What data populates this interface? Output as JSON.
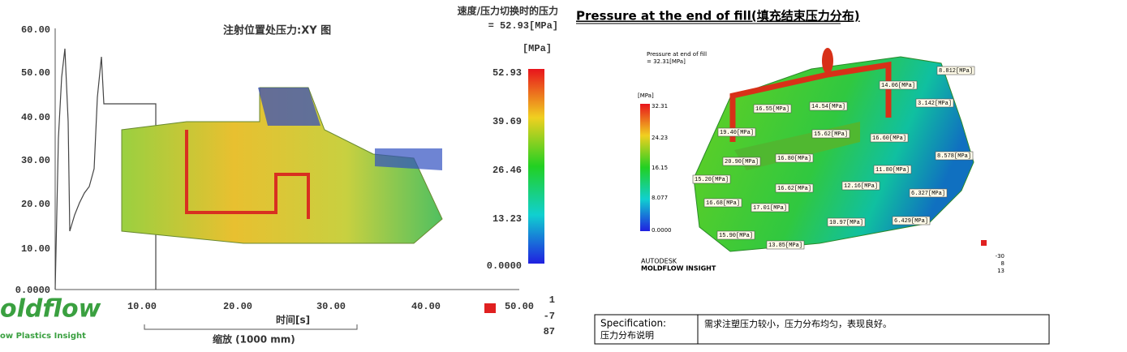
{
  "left": {
    "title": "注射位置处压力:XY 图",
    "switch_label": "速度/压力切换时的压力",
    "switch_value": "= 52.93[MPa]",
    "unit": "[MPa]",
    "legend_ticks": [
      "52.93",
      "39.69",
      "26.46",
      "13.23",
      "0.0000"
    ],
    "yticks": [
      "60.00",
      "50.00",
      "40.00",
      "30.00",
      "20.00",
      "10.00",
      "0.0000"
    ],
    "xticks": [
      "10.00",
      "20.00",
      "30.00",
      "40.00",
      "50.00"
    ],
    "x_label": "时间[s]",
    "scale_label": "缩放 (1000 mm)",
    "brand": "oldflow",
    "brand_sub": "ow Plastics Insight",
    "triad": [
      "1",
      "-7",
      "87"
    ]
  },
  "right": {
    "title": "Pressure at the end of fill(填充结束压力分布)",
    "result_name": "Pressure at end of fill",
    "result_value": "= 32.31[MPa]",
    "unit": "[MPa]",
    "legend_ticks": [
      "32.31",
      "24.23",
      "16.15",
      "8.077",
      "0.0000"
    ],
    "labels": [
      "8.812[MPa]",
      "14.06[MPa]",
      "3.142[MPa]",
      "16.55[MPa]",
      "14.54[MPa]",
      "19.40[MPa]",
      "15.62[MPa]",
      "16.60[MPa]",
      "8.578[MPa]",
      "16.80[MPa]",
      "20.90[MPa]",
      "11.80[MPa]",
      "15.20[MPa]",
      "16.62[MPa]",
      "12.16[MPa]",
      "6.327[MPa]",
      "16.68[MPa]",
      "17.01[MPa]",
      "10.97[MPa]",
      "6.429[MPa]",
      "15.90[MPa]",
      "13.85[MPa]"
    ],
    "brand": "AUTODESK",
    "product": "MOLDFLOW INSIGHT",
    "triad": [
      "-30",
      "8",
      "13"
    ],
    "spec": {
      "label_en": "Specification:",
      "label_cn": "压力分布说明",
      "text": "需求注塑压力较小，压力分布均匀，表现良好。"
    }
  }
}
